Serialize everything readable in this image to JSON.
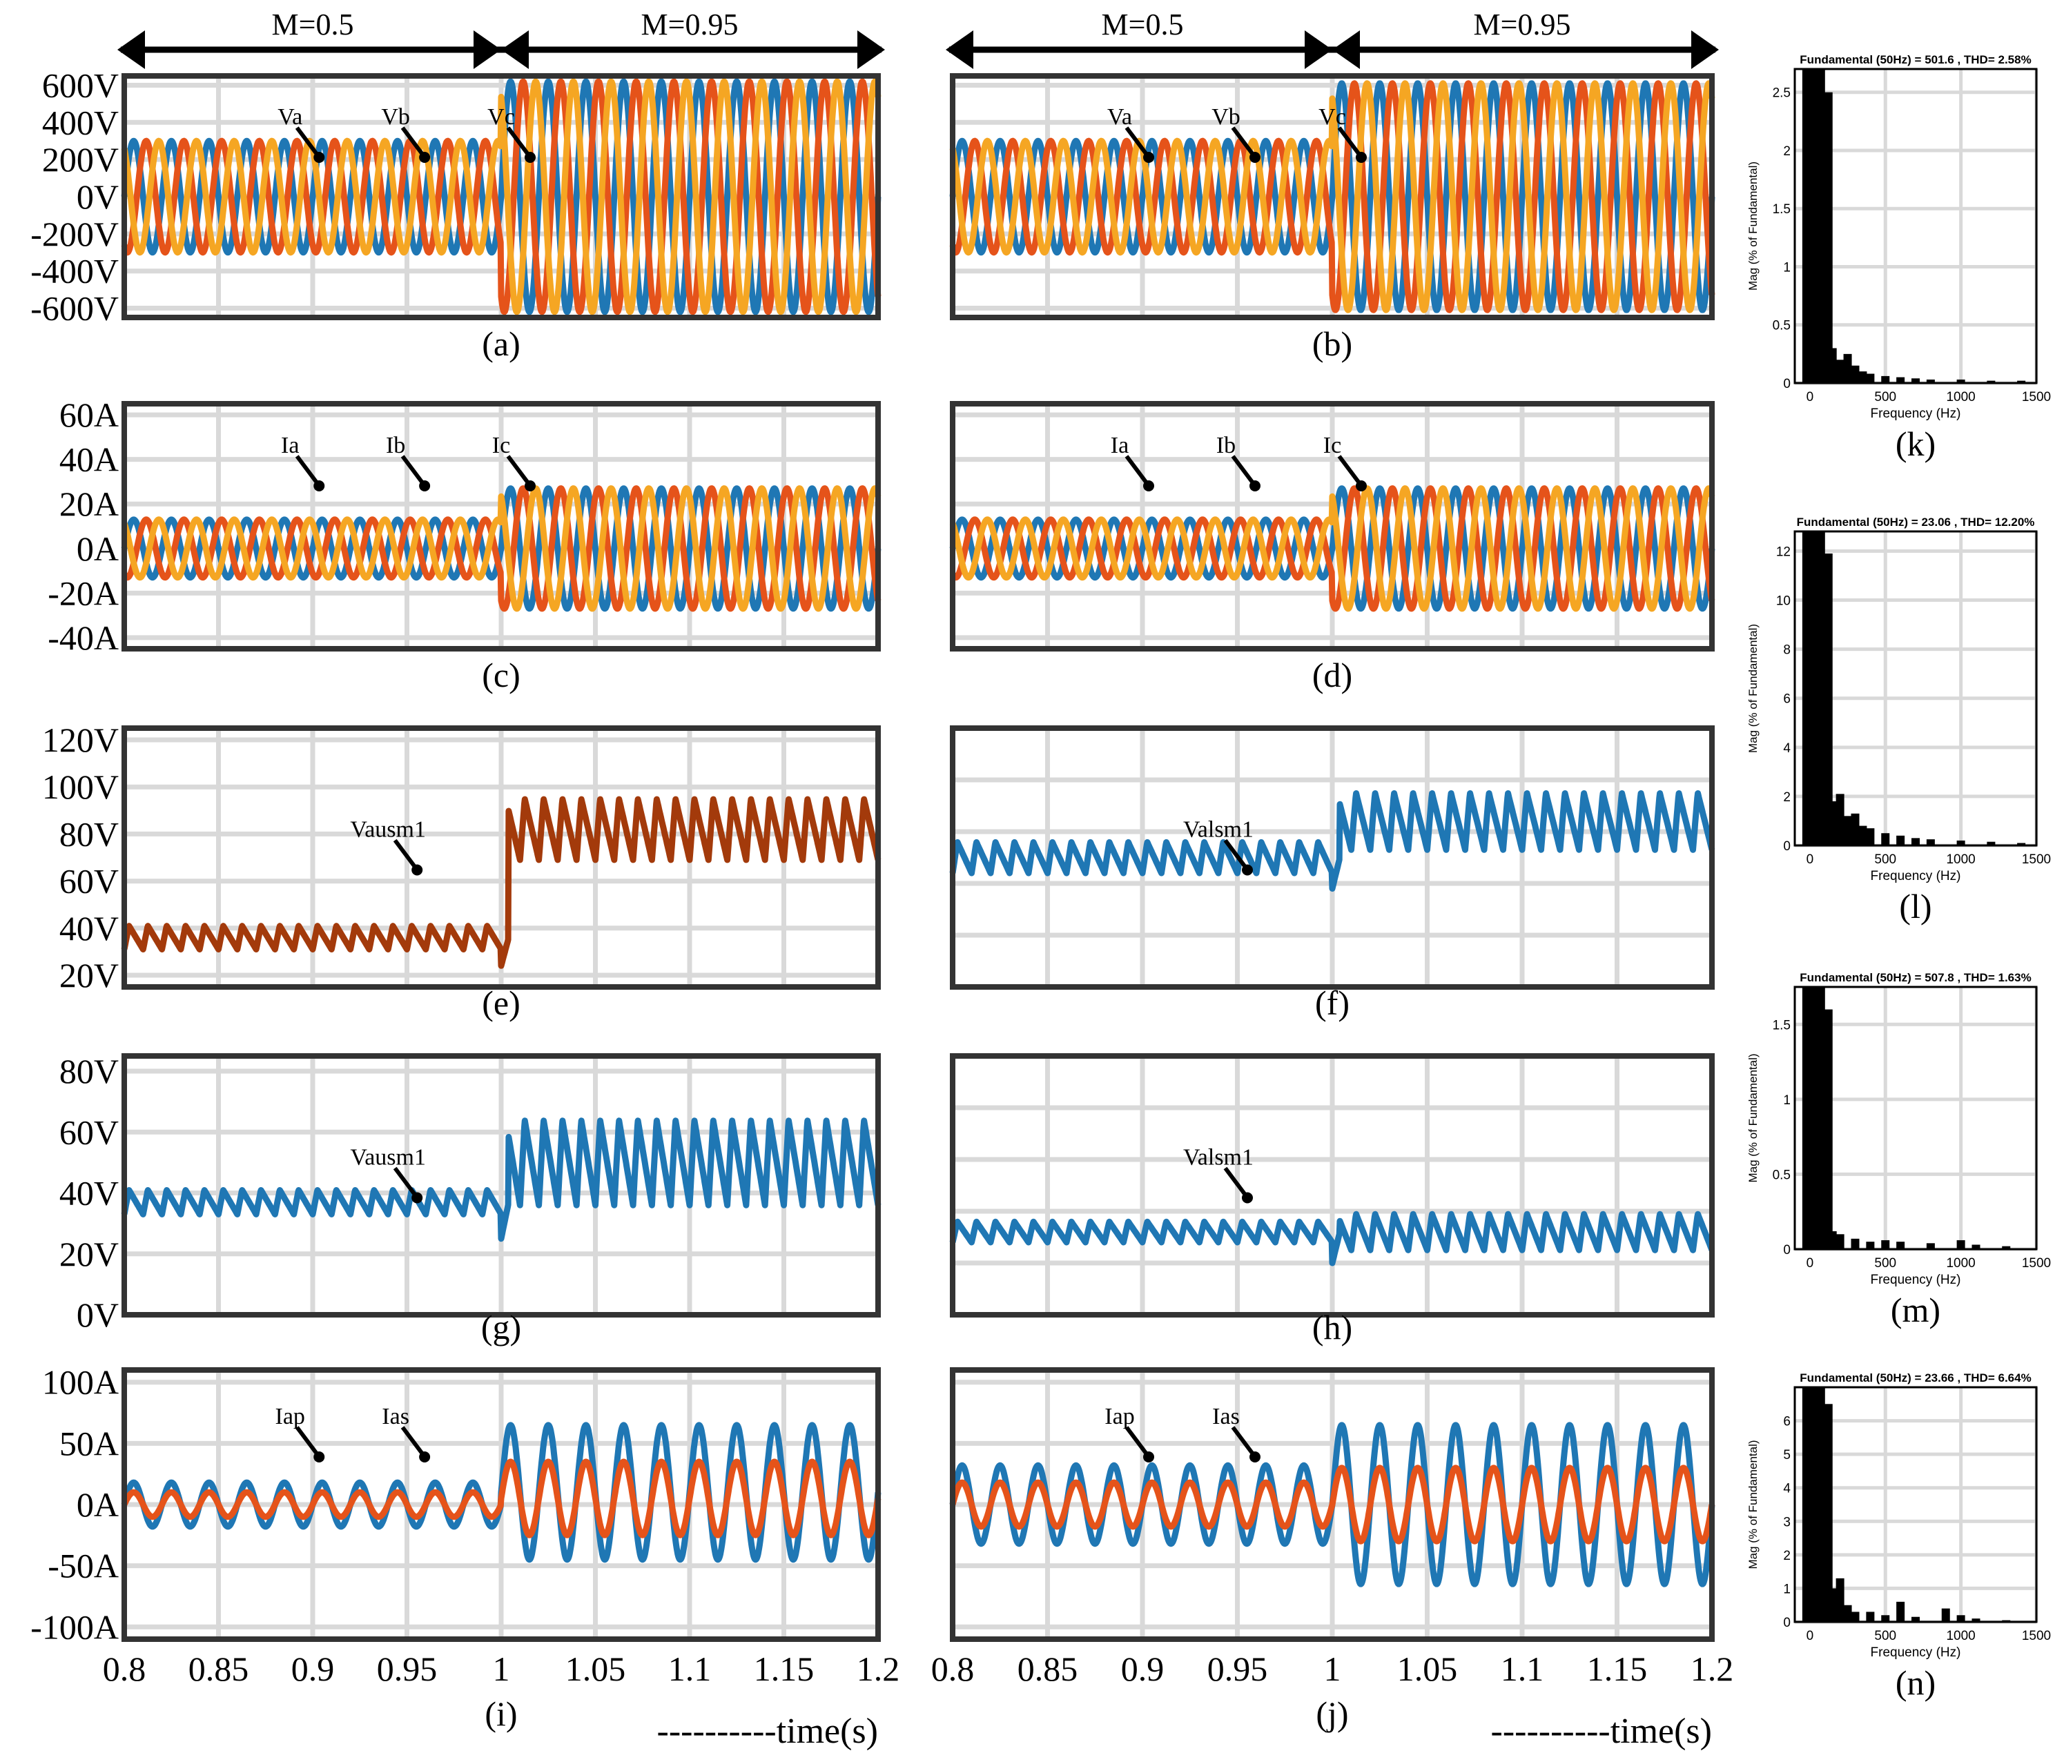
{
  "figure": {
    "mode_labels": {
      "left": "M=0.5",
      "right": "M=0.95"
    },
    "time_label": "----------time(s)",
    "x_ticks": [
      "0.8",
      "0.85",
      "0.9",
      "0.95",
      "1",
      "1.05",
      "1.1",
      "1.15",
      "1.2"
    ]
  },
  "colors": {
    "blue": "#1f77b4",
    "orange": "#e5531a",
    "yellow": "#f5a623",
    "brown": "#a33a0b",
    "grid": "#d9d9d9"
  },
  "chart_data": [
    {
      "id": "a",
      "type": "line",
      "caption": "(a)",
      "xlim": [
        0.8,
        1.2
      ],
      "ylim": [
        -650,
        650
      ],
      "ytick_values": [
        600,
        400,
        200,
        0,
        -200,
        -400,
        -600
      ],
      "yticks": [
        "600V",
        "400V",
        "200V",
        "0V",
        "-200V",
        "-400V",
        "-600V"
      ],
      "step_time": 1.0,
      "series": [
        {
          "name": "Va",
          "color": "blue",
          "amp_before": 300,
          "amp_after": 620,
          "phase": 0
        },
        {
          "name": "Vb",
          "color": "orange",
          "amp_before": 300,
          "amp_after": 620,
          "phase": -2.094
        },
        {
          "name": "Vc",
          "color": "yellow",
          "amp_before": 300,
          "amp_after": 620,
          "phase": 2.094
        }
      ],
      "annotations": [
        "Va",
        "Vb",
        "Vc"
      ]
    },
    {
      "id": "b",
      "type": "line",
      "caption": "(b)",
      "xlim": [
        0.8,
        1.2
      ],
      "ylim": [
        -650,
        650
      ],
      "ytick_values": [
        600,
        400,
        200,
        0,
        -200,
        -400,
        -600
      ],
      "yticks": [],
      "step_time": 1.0,
      "series": [
        {
          "name": "Va",
          "color": "blue",
          "amp_before": 300,
          "amp_after": 610,
          "phase": 0
        },
        {
          "name": "Vb",
          "color": "orange",
          "amp_before": 300,
          "amp_after": 610,
          "phase": -2.094
        },
        {
          "name": "Vc",
          "color": "yellow",
          "amp_before": 300,
          "amp_after": 610,
          "phase": 2.094
        }
      ],
      "annotations": [
        "Va",
        "Vb",
        "Vc"
      ]
    },
    {
      "id": "c",
      "type": "line",
      "caption": "(c)",
      "xlim": [
        0.8,
        1.2
      ],
      "ylim": [
        -45,
        65
      ],
      "ytick_values": [
        60,
        40,
        20,
        0,
        -20,
        -40
      ],
      "yticks": [
        "60A",
        "40A",
        "20A",
        "0A",
        "-20A",
        "-40A"
      ],
      "step_time": 1.0,
      "series": [
        {
          "name": "Ia",
          "color": "blue",
          "amp_before": 13,
          "amp_after": 27,
          "phase": 0
        },
        {
          "name": "Ib",
          "color": "orange",
          "amp_before": 13,
          "amp_after": 27,
          "phase": -2.094
        },
        {
          "name": "Ic",
          "color": "yellow",
          "amp_before": 13,
          "amp_after": 27,
          "phase": 2.094
        }
      ],
      "annotations": [
        "Ia",
        "Ib",
        "Ic"
      ]
    },
    {
      "id": "d",
      "type": "line",
      "caption": "(d)",
      "xlim": [
        0.8,
        1.2
      ],
      "ylim": [
        -45,
        65
      ],
      "ytick_values": [
        60,
        40,
        20,
        0,
        -20,
        -40
      ],
      "yticks": [],
      "step_time": 1.0,
      "series": [
        {
          "name": "Ia",
          "color": "blue",
          "amp_before": 13,
          "amp_after": 27,
          "phase": 0
        },
        {
          "name": "Ib",
          "color": "orange",
          "amp_before": 13,
          "amp_after": 27,
          "phase": -2.094
        },
        {
          "name": "Ic",
          "color": "yellow",
          "amp_before": 13,
          "amp_after": 27,
          "phase": 2.094
        }
      ],
      "annotations": [
        "Ia",
        "Ib",
        "Ic"
      ]
    },
    {
      "id": "e",
      "type": "line",
      "caption": "(e)",
      "xlim": [
        0.8,
        1.2
      ],
      "ylim": [
        15,
        125
      ],
      "ytick_values": [
        120,
        100,
        80,
        60,
        40,
        20
      ],
      "yticks": [
        "120V",
        "100V",
        "80V",
        "60V",
        "40V",
        "20V"
      ],
      "step_time": 1.0,
      "series": [
        {
          "name": "Vausm1",
          "color": "brown",
          "dc_before": 36,
          "ripple_before": 5,
          "dc_after": 82,
          "ripple_after": 13
        }
      ],
      "annotations": [
        "Vausm1"
      ]
    },
    {
      "id": "f",
      "type": "line",
      "caption": "(f)",
      "xlim": [
        0.8,
        1.2
      ],
      "ylim": [
        0,
        100
      ],
      "ytick_values": [
        20,
        40,
        60,
        80
      ],
      "yticks": [],
      "step_time": 1.0,
      "series": [
        {
          "name": "Valsm1",
          "color": "blue",
          "dc_before": 50,
          "ripple_before": 6,
          "dc_after": 64,
          "ripple_after": 11
        }
      ],
      "annotations": [
        "Valsm1"
      ]
    },
    {
      "id": "g",
      "type": "line",
      "caption": "(g)",
      "xlim": [
        0.8,
        1.2
      ],
      "ylim": [
        0,
        85
      ],
      "ytick_values": [
        80,
        60,
        40,
        20,
        0
      ],
      "yticks": [
        "80V",
        "60V",
        "40V",
        "20V",
        "0V"
      ],
      "step_time": 1.0,
      "series": [
        {
          "name": "Vausm1",
          "color": "blue",
          "dc_before": 37,
          "ripple_before": 4,
          "dc_after": 50,
          "ripple_after": 14
        }
      ],
      "annotations": [
        "Vausm1"
      ]
    },
    {
      "id": "h",
      "type": "line",
      "caption": "(h)",
      "xlim": [
        0.8,
        1.2
      ],
      "ylim": [
        0,
        100
      ],
      "ytick_values": [
        20,
        40,
        60,
        80
      ],
      "yticks": [],
      "step_time": 1.0,
      "series": [
        {
          "name": "Valsm1",
          "color": "blue",
          "dc_before": 32,
          "ripple_before": 4,
          "dc_after": 32,
          "ripple_after": 7
        }
      ],
      "annotations": [
        "Valsm1"
      ]
    },
    {
      "id": "i",
      "type": "line",
      "caption": "(i)",
      "xlim": [
        0.8,
        1.2
      ],
      "ylim": [
        -110,
        110
      ],
      "ytick_values": [
        100,
        50,
        0,
        -50,
        -100
      ],
      "yticks": [
        "100A",
        "50A",
        "0A",
        "-50A",
        "-100A"
      ],
      "step_time": 1.0,
      "series": [
        {
          "name": "Iap",
          "color": "blue",
          "amp_before": 18,
          "amp_after": 55,
          "offset_after": 10
        },
        {
          "name": "Ias",
          "color": "orange",
          "amp_before": 10,
          "amp_after": 30,
          "offset_after": 5
        }
      ],
      "annotations": [
        "Iap",
        "Ias"
      ]
    },
    {
      "id": "j",
      "type": "line",
      "caption": "(j)",
      "xlim": [
        0.8,
        1.2
      ],
      "ylim": [
        -110,
        110
      ],
      "ytick_values": [
        100,
        50,
        0,
        -50,
        -100
      ],
      "yticks": [],
      "step_time": 1.0,
      "series": [
        {
          "name": "Iap",
          "color": "blue",
          "amp_before": 32,
          "amp_after": 65,
          "offset_after": 0
        },
        {
          "name": "Ias",
          "color": "orange",
          "amp_before": 18,
          "amp_after": 30,
          "offset_after": 0
        }
      ],
      "annotations": [
        "Iap",
        "Ias"
      ]
    },
    {
      "id": "k",
      "type": "bar",
      "caption": "(k)",
      "title": "Fundamental (50Hz) = 501.6 , THD= 2.58%",
      "xlabel": "Frequency (Hz)",
      "ylabel": "Mag (% of Fundamental)",
      "xlim": [
        -100,
        1500
      ],
      "ylim": [
        0,
        2.7
      ],
      "xticks": [
        "0",
        "500",
        "1000",
        "1500"
      ],
      "xtick_values": [
        0,
        500,
        1000,
        1500
      ],
      "yticks": [
        "0",
        "0.5",
        "1",
        "1.5",
        "2",
        "2.5"
      ],
      "ytick_values": [
        0,
        0.5,
        1,
        1.5,
        2,
        2.5
      ],
      "bars": [
        [
          0,
          2.7
        ],
        [
          50,
          2.7
        ],
        [
          100,
          2.5
        ],
        [
          150,
          0.3
        ],
        [
          200,
          0.2
        ],
        [
          250,
          0.25
        ],
        [
          300,
          0.15
        ],
        [
          350,
          0.1
        ],
        [
          400,
          0.08
        ],
        [
          500,
          0.06
        ],
        [
          600,
          0.05
        ],
        [
          700,
          0.04
        ],
        [
          800,
          0.03
        ],
        [
          1000,
          0.03
        ],
        [
          1200,
          0.02
        ],
        [
          1400,
          0.02
        ]
      ]
    },
    {
      "id": "l",
      "type": "bar",
      "caption": "(l)",
      "title": "Fundamental (50Hz) = 23.06 , THD= 12.20%",
      "xlabel": "Frequency (Hz)",
      "ylabel": "Mag (% of Fundamental)",
      "xlim": [
        -100,
        1500
      ],
      "ylim": [
        0,
        12.8
      ],
      "xticks": [
        "0",
        "500",
        "1000",
        "1500"
      ],
      "xtick_values": [
        0,
        500,
        1000,
        1500
      ],
      "yticks": [
        "0",
        "2",
        "4",
        "6",
        "8",
        "10",
        "12"
      ],
      "ytick_values": [
        0,
        2,
        4,
        6,
        8,
        10,
        12
      ],
      "bars": [
        [
          0,
          12.8
        ],
        [
          50,
          12.8
        ],
        [
          100,
          11.9
        ],
        [
          150,
          1.8
        ],
        [
          200,
          2.1
        ],
        [
          250,
          1.2
        ],
        [
          300,
          1.3
        ],
        [
          350,
          0.8
        ],
        [
          400,
          0.7
        ],
        [
          500,
          0.5
        ],
        [
          600,
          0.4
        ],
        [
          700,
          0.3
        ],
        [
          800,
          0.25
        ],
        [
          1000,
          0.2
        ],
        [
          1200,
          0.15
        ],
        [
          1400,
          0.1
        ]
      ]
    },
    {
      "id": "m",
      "type": "bar",
      "caption": "(m)",
      "title": "Fundamental (50Hz) = 507.8 , THD= 1.63%",
      "xlabel": "Frequency (Hz)",
      "ylabel": "Mag (% of Fundamental)",
      "xlim": [
        -100,
        1500
      ],
      "ylim": [
        0,
        1.75
      ],
      "xticks": [
        "0",
        "500",
        "1000",
        "1500"
      ],
      "xtick_values": [
        0,
        500,
        1000,
        1500
      ],
      "yticks": [
        "0",
        "0.5",
        "1",
        "1.5"
      ],
      "ytick_values": [
        0,
        0.5,
        1,
        1.5
      ],
      "bars": [
        [
          0,
          1.75
        ],
        [
          50,
          1.75
        ],
        [
          100,
          1.6
        ],
        [
          150,
          0.12
        ],
        [
          200,
          0.1
        ],
        [
          300,
          0.07
        ],
        [
          400,
          0.05
        ],
        [
          500,
          0.06
        ],
        [
          600,
          0.05
        ],
        [
          800,
          0.04
        ],
        [
          1000,
          0.06
        ],
        [
          1100,
          0.03
        ],
        [
          1300,
          0.02
        ]
      ]
    },
    {
      "id": "n",
      "type": "bar",
      "caption": "(n)",
      "title": "Fundamental (50Hz) = 23.66 , THD= 6.64%",
      "xlabel": "Frequency (Hz)",
      "ylabel": "Mag (% of Fundamental)",
      "xlim": [
        -100,
        1500
      ],
      "ylim": [
        0,
        7
      ],
      "xticks": [
        "0",
        "500",
        "1000",
        "1500"
      ],
      "xtick_values": [
        0,
        500,
        1000,
        1500
      ],
      "yticks": [
        "0",
        "1",
        "2",
        "3",
        "4",
        "5",
        "6"
      ],
      "ytick_values": [
        0,
        1,
        2,
        3,
        4,
        5,
        6
      ],
      "bars": [
        [
          0,
          7
        ],
        [
          50,
          7
        ],
        [
          100,
          6.5
        ],
        [
          150,
          1.0
        ],
        [
          200,
          1.3
        ],
        [
          250,
          0.5
        ],
        [
          300,
          0.3
        ],
        [
          400,
          0.3
        ],
        [
          500,
          0.2
        ],
        [
          600,
          0.6
        ],
        [
          700,
          0.15
        ],
        [
          900,
          0.4
        ],
        [
          1000,
          0.2
        ],
        [
          1100,
          0.1
        ],
        [
          1300,
          0.05
        ]
      ]
    }
  ]
}
